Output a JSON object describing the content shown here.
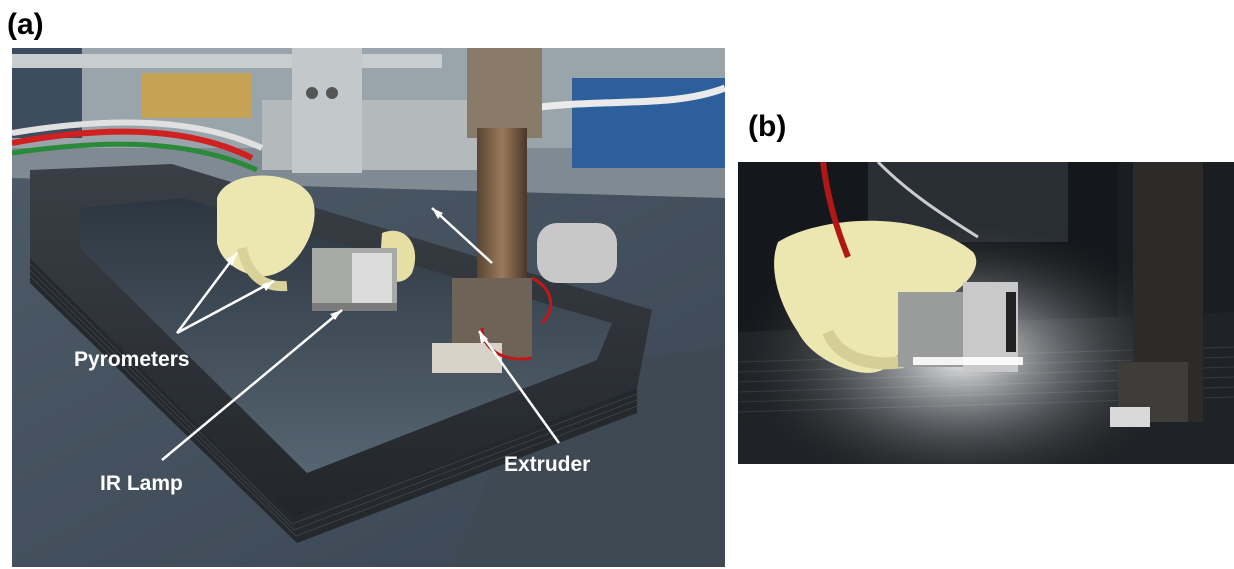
{
  "figure": {
    "panel_a": {
      "label": "(a)",
      "annotations": {
        "pyrometers": "Pyrometers",
        "ir_lamp": "IR Lamp",
        "extruder": "Extruder"
      }
    },
    "panel_b": {
      "label": "(b)"
    }
  },
  "colors": {
    "background": "#ffffff",
    "label_text": "#000000",
    "annotation_text": "#ffffff",
    "printed_part": "#2f3338",
    "print_bed": "#3b4a58",
    "pyrometer_insulation": "#ece7b0"
  }
}
